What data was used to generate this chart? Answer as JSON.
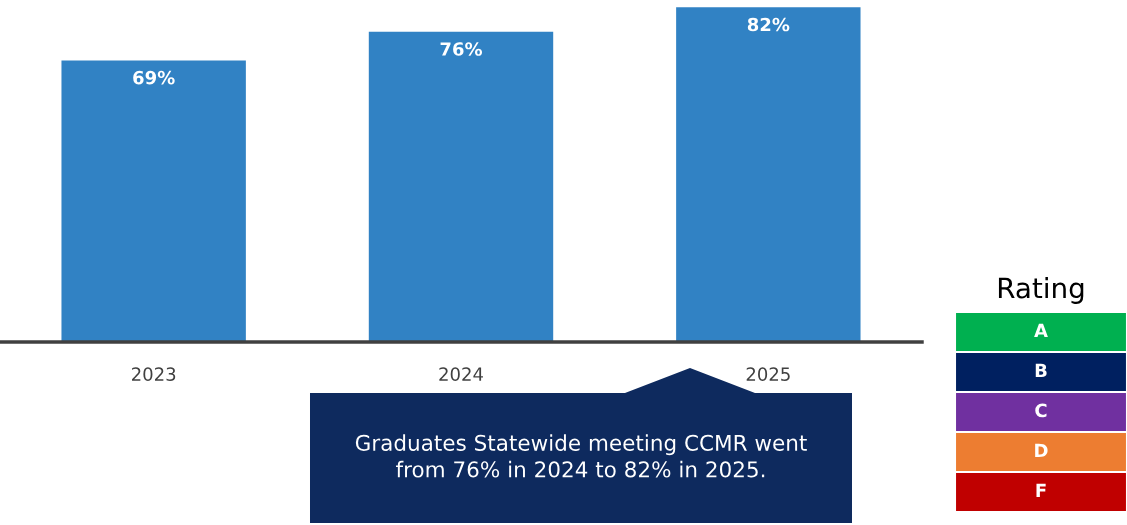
{
  "chart_data": [
    {
      "type": "bar",
      "categories": [
        "2023",
        "2024",
        "2025"
      ],
      "values": [
        69,
        76,
        82
      ],
      "value_labels": [
        "69%",
        "76%",
        "82%"
      ],
      "color": "#3182c4",
      "annotations": [
        "Graduates Statewide meeting CCMR went from 76% in 2024 to 82% in 2025."
      ]
    },
    {
      "type": "other",
      "title": "Rating",
      "categories": [
        "A",
        "B",
        "C",
        "D",
        "F"
      ],
      "colors": [
        "#00b050",
        "#002060",
        "#7030a0",
        "#ed7d31",
        "#c00000"
      ]
    }
  ]
}
